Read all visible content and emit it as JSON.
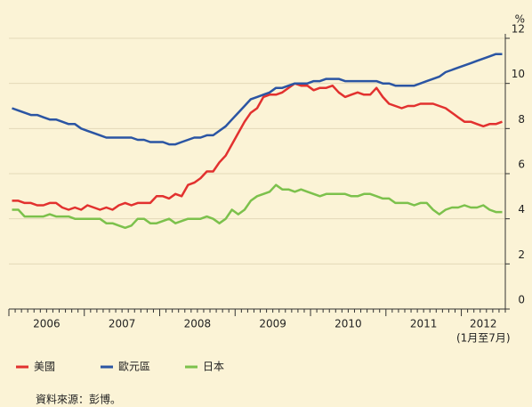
{
  "chart_data": {
    "type": "line",
    "y_unit": "%",
    "years": [
      "2006",
      "2007",
      "2008",
      "2009",
      "2010",
      "2011",
      "2012"
    ],
    "year_note": "(1月至7月)",
    "ylim": [
      0,
      12
    ],
    "yticks": [
      0,
      2,
      4,
      6,
      8,
      10,
      12
    ],
    "grid": true,
    "series": [
      {
        "name": "美國",
        "color": "#e2312f",
        "values": [
          4.8,
          4.8,
          4.7,
          4.7,
          4.6,
          4.6,
          4.7,
          4.7,
          4.5,
          4.4,
          4.5,
          4.4,
          4.6,
          4.5,
          4.4,
          4.5,
          4.4,
          4.6,
          4.7,
          4.6,
          4.7,
          4.7,
          4.7,
          5.0,
          5.0,
          4.9,
          5.1,
          5.0,
          5.5,
          5.6,
          5.8,
          6.1,
          6.1,
          6.5,
          6.8,
          7.3,
          7.8,
          8.3,
          8.7,
          8.9,
          9.4,
          9.5,
          9.5,
          9.6,
          9.8,
          10.0,
          9.9,
          9.9,
          9.7,
          9.8,
          9.8,
          9.9,
          9.6,
          9.4,
          9.5,
          9.6,
          9.5,
          9.5,
          9.8,
          9.4,
          9.1,
          9.0,
          8.9,
          9.0,
          9.0,
          9.1,
          9.1,
          9.1,
          9.0,
          8.9,
          8.7,
          8.5,
          8.3,
          8.3,
          8.2,
          8.1,
          8.2,
          8.2,
          8.3
        ]
      },
      {
        "name": "歐元區",
        "color": "#2b55a3",
        "values": [
          8.9,
          8.8,
          8.7,
          8.6,
          8.6,
          8.5,
          8.4,
          8.4,
          8.3,
          8.2,
          8.2,
          8.0,
          7.9,
          7.8,
          7.7,
          7.6,
          7.6,
          7.6,
          7.6,
          7.6,
          7.5,
          7.5,
          7.4,
          7.4,
          7.4,
          7.3,
          7.3,
          7.4,
          7.5,
          7.6,
          7.6,
          7.7,
          7.7,
          7.9,
          8.1,
          8.4,
          8.7,
          9.0,
          9.3,
          9.4,
          9.5,
          9.6,
          9.8,
          9.8,
          9.9,
          10.0,
          10.0,
          10.0,
          10.1,
          10.1,
          10.2,
          10.2,
          10.2,
          10.1,
          10.1,
          10.1,
          10.1,
          10.1,
          10.1,
          10.0,
          10.0,
          9.9,
          9.9,
          9.9,
          9.9,
          10.0,
          10.1,
          10.2,
          10.3,
          10.5,
          10.6,
          10.7,
          10.8,
          10.9,
          11.0,
          11.1,
          11.2,
          11.3,
          11.3
        ]
      },
      {
        "name": "日本",
        "color": "#7cc14c",
        "values": [
          4.4,
          4.4,
          4.1,
          4.1,
          4.1,
          4.1,
          4.2,
          4.1,
          4.1,
          4.1,
          4.0,
          4.0,
          4.0,
          4.0,
          4.0,
          3.8,
          3.8,
          3.7,
          3.6,
          3.7,
          4.0,
          4.0,
          3.8,
          3.8,
          3.9,
          4.0,
          3.8,
          3.9,
          4.0,
          4.0,
          4.0,
          4.1,
          4.0,
          3.8,
          4.0,
          4.4,
          4.2,
          4.4,
          4.8,
          5.0,
          5.1,
          5.2,
          5.5,
          5.3,
          5.3,
          5.2,
          5.3,
          5.2,
          5.1,
          5.0,
          5.1,
          5.1,
          5.1,
          5.1,
          5.0,
          5.0,
          5.1,
          5.1,
          5.0,
          4.9,
          4.9,
          4.7,
          4.7,
          4.7,
          4.6,
          4.7,
          4.7,
          4.4,
          4.2,
          4.4,
          4.5,
          4.5,
          4.6,
          4.5,
          4.5,
          4.6,
          4.4,
          4.3,
          4.3
        ]
      }
    ],
    "source": "資料來源：彭博。"
  }
}
